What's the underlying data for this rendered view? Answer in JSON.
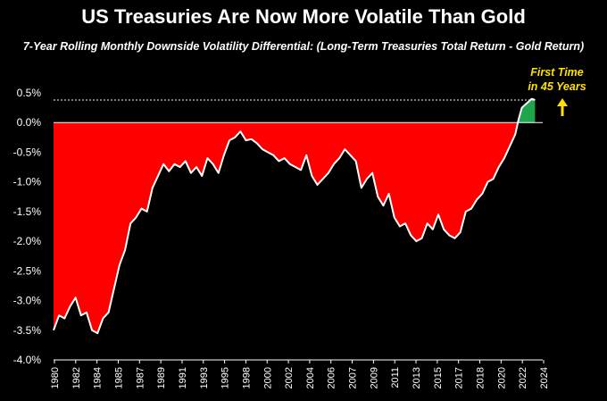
{
  "chart_data": {
    "type": "area",
    "title": "US Treasuries Are Now More Volatile Than Gold",
    "subtitle": "7-Year Rolling Monthly Downside Volatility Differential: (Long-Term Treasuries Total Return - Gold Return)",
    "xlabel": "",
    "ylabel": "",
    "ylim": [
      -4.0,
      0.5
    ],
    "yticks": [
      "0.5%",
      "0.0%",
      "-0.5%",
      "-1.0%",
      "-1.5%",
      "-2.0%",
      "-2.5%",
      "-3.0%",
      "-3.5%",
      "-4.0%"
    ],
    "xticks": [
      "1980",
      "1982",
      "1984",
      "1985",
      "1987",
      "1989",
      "1991",
      "1993",
      "1995",
      "1998",
      "2000",
      "2002",
      "2004",
      "2006",
      "2007",
      "2009",
      "2011",
      "2013",
      "2015",
      "2017",
      "2018",
      "2020",
      "2022",
      "2024"
    ],
    "grid": false,
    "reference_line": 0.38,
    "annotation": {
      "line1": "First Time",
      "line2": "in 45 Years",
      "arrow": "up-arrow"
    },
    "colors": {
      "negative_fill": "#ff0000",
      "positive_fill": "#1fa54b",
      "line": "#ffffff",
      "annotation": "#ffe000",
      "background": "#000000"
    },
    "series": [
      {
        "x": [
          1980.0,
          1980.5,
          1981.0,
          1981.5,
          1982.0,
          1982.5,
          1983.0,
          1983.5,
          1984.0,
          1984.5,
          1985.0,
          1985.5,
          1986.0,
          1986.5,
          1987.0,
          1987.5,
          1988.0,
          1988.5,
          1989.0,
          1989.5,
          1990.0,
          1990.5,
          1991.0,
          1991.5,
          1992.0,
          1992.5,
          1993.0,
          1993.5,
          1994.0,
          1994.5,
          1995.0,
          1995.5,
          1996.0,
          1996.5,
          1997.0,
          1997.5,
          1998.0,
          1998.5,
          1999.0,
          1999.5,
          2000.0,
          2000.5,
          2001.0,
          2001.5,
          2002.0,
          2002.5,
          2003.0,
          2003.5,
          2004.0,
          2004.5,
          2005.0,
          2005.5,
          2006.0,
          2006.5,
          2007.0,
          2007.5,
          2008.0,
          2008.5,
          2009.0,
          2009.5,
          2010.0,
          2010.5,
          2011.0,
          2011.5,
          2012.0,
          2012.5,
          2013.0,
          2013.5,
          2014.0,
          2014.5,
          2015.0,
          2015.5,
          2016.0,
          2016.5,
          2017.0,
          2017.5,
          2018.0,
          2018.5,
          2019.0,
          2019.5,
          2020.0,
          2020.5,
          2021.0,
          2021.5,
          2022.0,
          2022.3,
          2022.6,
          2022.9,
          2023.2,
          2023.5,
          2023.8
        ],
        "y": [
          -3.5,
          -3.25,
          -3.3,
          -3.1,
          -2.95,
          -3.25,
          -3.2,
          -3.5,
          -3.55,
          -3.3,
          -3.2,
          -2.8,
          -2.4,
          -2.15,
          -1.7,
          -1.6,
          -1.45,
          -1.5,
          -1.1,
          -0.9,
          -0.7,
          -0.82,
          -0.7,
          -0.75,
          -0.65,
          -0.85,
          -0.75,
          -0.9,
          -0.6,
          -0.7,
          -0.85,
          -0.55,
          -0.3,
          -0.25,
          -0.15,
          -0.3,
          -0.28,
          -0.35,
          -0.45,
          -0.5,
          -0.55,
          -0.65,
          -0.6,
          -0.7,
          -0.75,
          -0.8,
          -0.55,
          -0.9,
          -1.05,
          -0.95,
          -0.85,
          -0.7,
          -0.6,
          -0.45,
          -0.55,
          -0.65,
          -1.1,
          -0.95,
          -0.85,
          -1.25,
          -1.4,
          -1.2,
          -1.6,
          -1.75,
          -1.7,
          -1.9,
          -2.0,
          -1.95,
          -1.7,
          -1.8,
          -1.55,
          -1.8,
          -1.9,
          -1.95,
          -1.85,
          -1.5,
          -1.45,
          -1.3,
          -1.2,
          -1.0,
          -0.95,
          -0.75,
          -0.6,
          -0.4,
          -0.2,
          0.05,
          0.25,
          0.3,
          0.35,
          0.4,
          0.38
        ]
      }
    ]
  }
}
